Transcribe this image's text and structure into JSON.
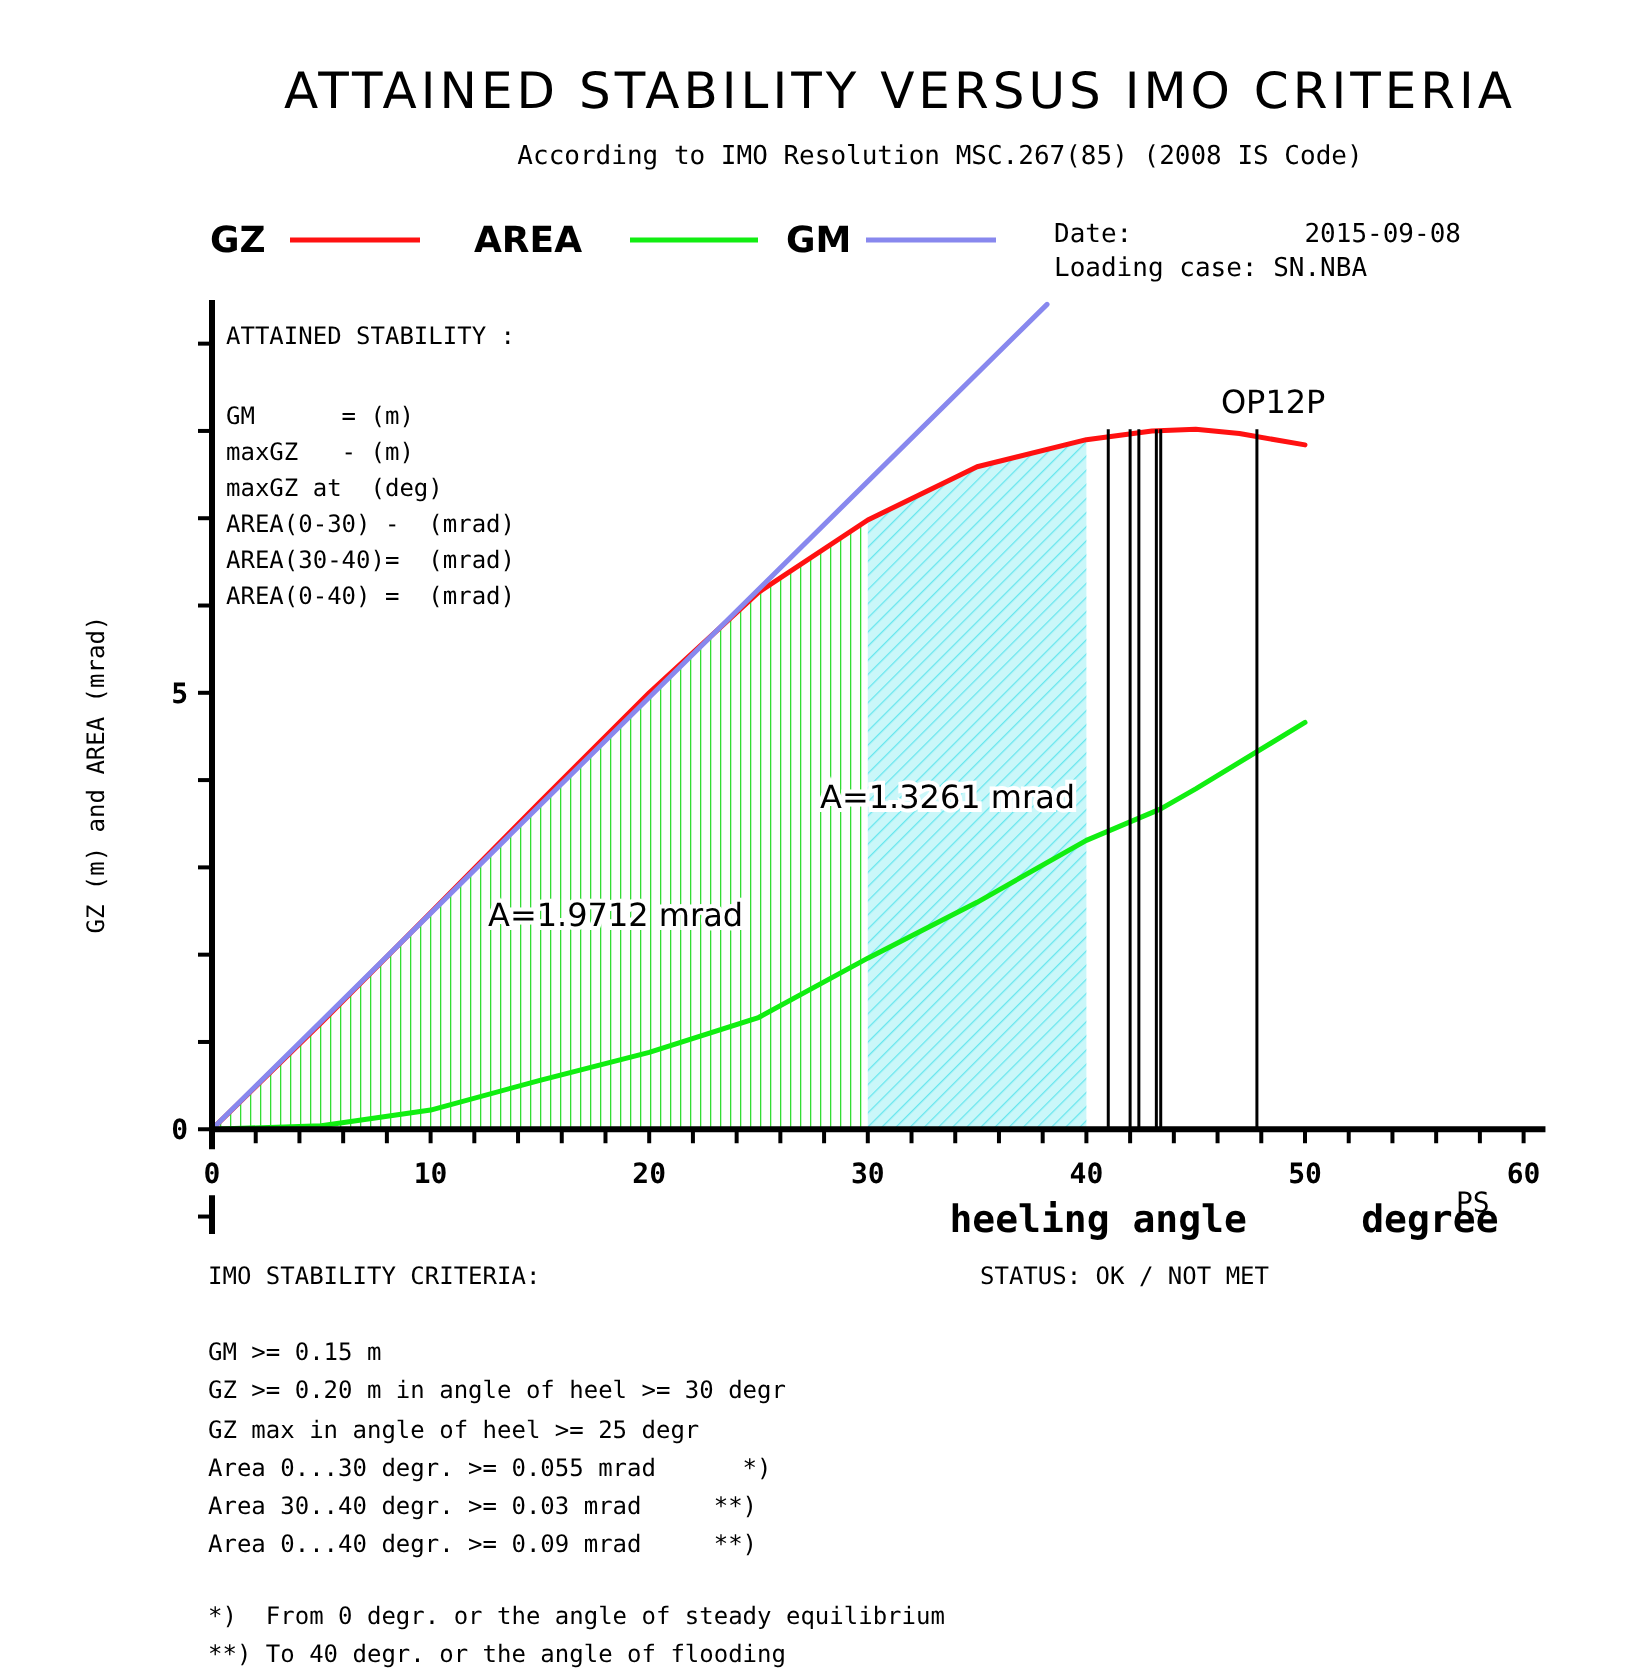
{
  "chart_data": {
    "type": "line",
    "title": "ATTAINED STABILITY VERSUS IMO CRITERIA",
    "subtitle": "According to IMO Resolution MSC.267(85) (2008 IS Code)",
    "xlabel": "heeling angle     degree",
    "ylabel": "GZ (m) and AREA (mrad)",
    "legend": "top",
    "grid": false,
    "marker": "none",
    "line_style": "solid",
    "series": [
      {
        "type": "area",
        "color": "#33dd33",
        "x": [
          0,
          5,
          10,
          15,
          20,
          25,
          30
        ],
        "values": [
          0,
          1.22,
          2.48,
          3.75,
          5.0,
          6.15,
          6.98
        ]
      },
      {
        "type": "area",
        "color": "#66e6ee",
        "x": [
          30,
          35,
          40
        ],
        "values": [
          6.98,
          7.59,
          7.9
        ]
      },
      {
        "name": "GZ",
        "color": "#ff1111",
        "x": [
          0,
          5,
          10,
          15,
          20,
          25,
          30,
          35,
          40,
          43,
          45,
          47,
          50
        ],
        "values": [
          0,
          1.22,
          2.48,
          3.75,
          5.0,
          6.15,
          6.98,
          7.59,
          7.9,
          8.0,
          8.02,
          7.97,
          7.84
        ]
      },
      {
        "name": "AREA",
        "color": "#11ee11",
        "x": [
          0,
          5,
          10,
          15,
          20,
          25,
          30,
          35,
          40,
          43.4,
          45,
          50
        ],
        "values": [
          0,
          0.04,
          0.22,
          0.56,
          0.88,
          1.28,
          1.96,
          2.6,
          3.31,
          3.67,
          3.9,
          4.66
        ]
      },
      {
        "name": "GM",
        "color": "#8888ee",
        "x": [
          0,
          38.2
        ],
        "values": [
          0,
          9.45
        ]
      }
    ],
    "xlim": [
      0,
      61
    ],
    "ylim": [
      -1.2,
      9.5
    ],
    "xticks": [
      0,
      {
        "value": 2,
        "label": null
      },
      {
        "value": 4,
        "label": null
      },
      {
        "value": 6,
        "label": null
      },
      {
        "value": 8,
        "label": null
      },
      10,
      {
        "value": 12,
        "label": null
      },
      {
        "value": 14,
        "label": null
      },
      {
        "value": 16,
        "label": null
      },
      {
        "value": 18,
        "label": null
      },
      20,
      {
        "value": 22,
        "label": null
      },
      {
        "value": 24,
        "label": null
      },
      {
        "value": 26,
        "label": null
      },
      {
        "value": 28,
        "label": null
      },
      30,
      {
        "value": 32,
        "label": null
      },
      {
        "value": 34,
        "label": null
      },
      {
        "value": 36,
        "label": null
      },
      {
        "value": 38,
        "label": null
      },
      40,
      {
        "value": 42,
        "label": null
      },
      {
        "value": 44,
        "label": null
      },
      {
        "value": 46,
        "label": null
      },
      {
        "value": 48,
        "label": null
      },
      50,
      {
        "value": 52,
        "label": null
      },
      {
        "value": 54,
        "label": null
      },
      {
        "value": 56,
        "label": null
      },
      {
        "value": 58,
        "label": null
      },
      60
    ],
    "yticks": [
      {
        "value": -1,
        "label": null
      },
      0,
      {
        "value": 1,
        "label": null
      },
      {
        "value": 2,
        "label": null
      },
      {
        "value": 3,
        "label": null
      },
      {
        "value": 4,
        "label": null
      },
      5,
      {
        "value": 6,
        "label": null
      },
      {
        "value": 7,
        "label": null
      },
      {
        "value": 8,
        "label": null
      },
      {
        "value": 9,
        "label": null
      }
    ],
    "ref_lines": [
      {
        "axis": "x",
        "value": 41.0,
        "color": "#000000"
      },
      {
        "axis": "x",
        "value": 42.0,
        "color": "#000000"
      },
      {
        "axis": "x",
        "value": 42.4,
        "color": "#000000"
      },
      {
        "axis": "x",
        "value": 43.2,
        "color": "#000000"
      },
      {
        "axis": "x",
        "value": 43.4,
        "color": "#000000"
      },
      {
        "axis": "x",
        "value": 47.8,
        "label": "OP12P",
        "color": "#000000"
      }
    ],
    "annotations": [
      "A=1.9712 mrad",
      "A=1.3261 mrad",
      "Date:           2015-09-08",
      "Loading case: SN.NBA",
      "ATTAINED STABILITY :",
      "GM      = (m)",
      "maxGZ   - (m)",
      "maxGZ at  (deg)",
      "AREA(0-30) -  (mrad)",
      "AREA(30-40)=  (mrad)",
      "AREA(0-40) =  (mrad)",
      "PS",
      "IMO STABILITY CRITERIA:",
      "STATUS: OK / NOT MET",
      "GM >= 0.15 m",
      "GZ >= 0.20 m in angle of heel >= 30 degr",
      "GZ max in angle of heel >= 25 degr",
      "Area 0...30 degr. >= 0.055 mrad      *)",
      "Area 30..40 degr. >= 0.03 mrad     **)",
      "Area 0...40 degr. >= 0.09 mrad     **)",
      "*)  From 0 degr. or the angle of steady equilibrium",
      "**) To 40 degr. or the angle of flooding"
    ]
  }
}
